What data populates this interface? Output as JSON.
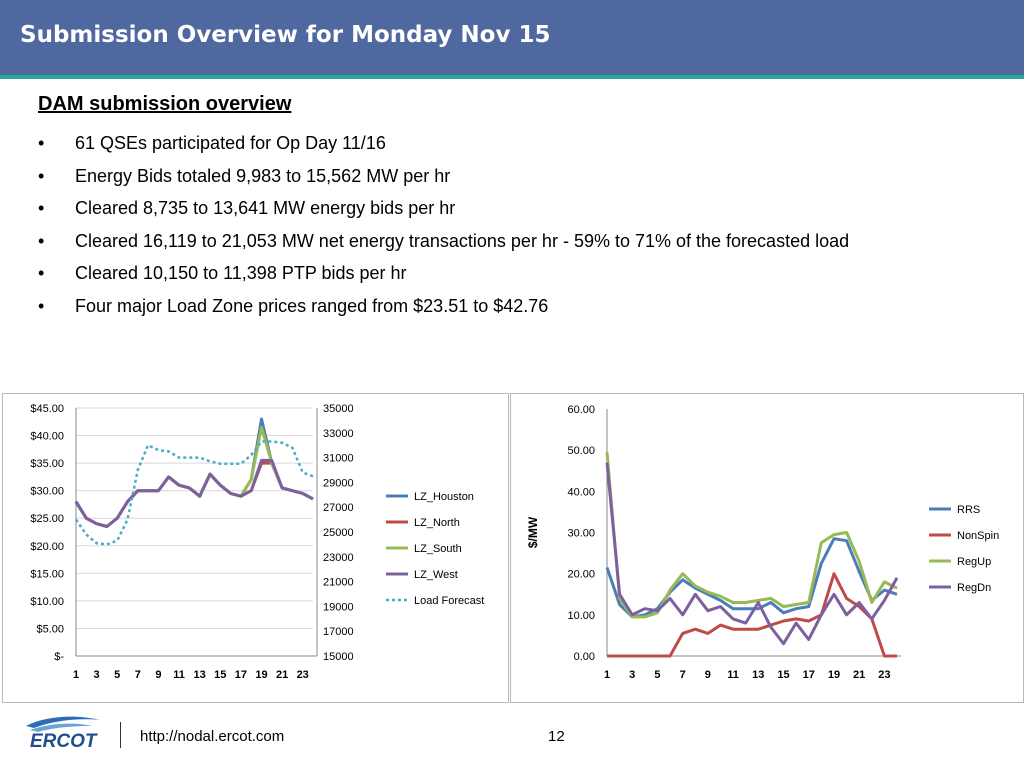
{
  "slide": {
    "title": "Submission Overview for Monday Nov 15",
    "heading": "DAM submission overview",
    "bullets": [
      "61 QSEs participated for Op Day 11/16",
      "Energy Bids totaled 9,983 to 15,562 MW per hr",
      "Cleared 8,735 to 13,641 MW energy bids per hr",
      "Cleared 16,119 to 21,053 MW net energy transactions per hr - 59% to 71% of the forecasted load",
      "Cleared 10,150 to 11,398 PTP bids per hr",
      "Four major Load Zone prices ranged from $23.51 to $42.76"
    ]
  },
  "footer": {
    "logo_text": "ERCOT",
    "url": "http://nodal.ercot.com",
    "page": "12"
  },
  "colors": {
    "header_bg": "#5068a0",
    "accent_line": "#2aa59a",
    "blue": "#4a7ebb",
    "red": "#be4b48",
    "green": "#98b954",
    "purple": "#7d60a0",
    "cyan": "#4bacc6"
  },
  "chart_data": [
    {
      "type": "line",
      "x": [
        1,
        2,
        3,
        4,
        5,
        6,
        7,
        8,
        9,
        10,
        11,
        12,
        13,
        14,
        15,
        16,
        17,
        18,
        19,
        20,
        21,
        22,
        23,
        24
      ],
      "x_tick_labels": [
        "1",
        "3",
        "5",
        "7",
        "9",
        "11",
        "13",
        "15",
        "17",
        "19",
        "21",
        "23"
      ],
      "y_tick_labels": [
        "$45.00",
        "$40.00",
        "$35.00",
        "$30.00",
        "$25.00",
        "$20.00",
        "$15.00",
        "$10.00",
        "$5.00",
        "$-"
      ],
      "y2_tick_labels": [
        "35000",
        "33000",
        "31000",
        "29000",
        "27000",
        "25000",
        "23000",
        "21000",
        "19000",
        "17000",
        "15000"
      ],
      "ylim": [
        0,
        45
      ],
      "y2lim": [
        15000,
        35000
      ],
      "grid": true,
      "legend": "right",
      "series": [
        {
          "name": "LZ_Houston",
          "color": "#4a7ebb",
          "dash": false,
          "axis": "left",
          "values": [
            28,
            25,
            24,
            23.5,
            25,
            28,
            30,
            30,
            30,
            32.5,
            31,
            30.5,
            29,
            33,
            31,
            29.5,
            29,
            32,
            43,
            35,
            30.5,
            30,
            29.5,
            28.5
          ]
        },
        {
          "name": "LZ_North",
          "color": "#be4b48",
          "dash": false,
          "axis": "left",
          "values": [
            28,
            25,
            24,
            23.5,
            25,
            28,
            30,
            30,
            30,
            32.5,
            31,
            30.5,
            29,
            33,
            31,
            29.5,
            29,
            30,
            35,
            35,
            30.5,
            30,
            29.5,
            28.5
          ]
        },
        {
          "name": "LZ_South",
          "color": "#98b954",
          "dash": false,
          "axis": "left",
          "values": [
            28,
            25,
            24,
            23.5,
            25,
            28,
            30,
            30,
            30,
            32.5,
            31,
            30.5,
            29,
            33,
            31,
            29.5,
            29,
            32,
            41.5,
            35,
            30.5,
            30,
            29.5,
            28.5
          ]
        },
        {
          "name": "LZ_West",
          "color": "#7d60a0",
          "dash": false,
          "axis": "left",
          "values": [
            28,
            25,
            24,
            23.5,
            25,
            28,
            30,
            30,
            30,
            32.5,
            31,
            30.5,
            29,
            33,
            31,
            29.5,
            29,
            30,
            35.5,
            35.5,
            30.5,
            30,
            29.5,
            28.5
          ]
        },
        {
          "name": "Load Forecast",
          "color": "#4bacc6",
          "dash": true,
          "axis": "right",
          "values": [
            26000,
            24800,
            24100,
            24000,
            24300,
            26000,
            30000,
            32000,
            31600,
            31500,
            31000,
            31000,
            31000,
            30700,
            30500,
            30500,
            30500,
            31200,
            32300,
            32300,
            32200,
            31800,
            29800,
            29500
          ]
        }
      ]
    },
    {
      "type": "line",
      "x": [
        1,
        2,
        3,
        4,
        5,
        6,
        7,
        8,
        9,
        10,
        11,
        12,
        13,
        14,
        15,
        16,
        17,
        18,
        19,
        20,
        21,
        22,
        23,
        24
      ],
      "x_tick_labels": [
        "1",
        "3",
        "5",
        "7",
        "9",
        "11",
        "13",
        "15",
        "17",
        "19",
        "21",
        "23"
      ],
      "y_tick_labels": [
        "60.00",
        "50.00",
        "40.00",
        "30.00",
        "20.00",
        "10.00",
        "0.00"
      ],
      "ylabel": "$/MW",
      "ylim": [
        0,
        60
      ],
      "grid": false,
      "legend": "right",
      "series": [
        {
          "name": "RRS",
          "color": "#4a7ebb",
          "dash": false,
          "values": [
            21.5,
            12.5,
            9.5,
            10,
            11.5,
            15.5,
            18.5,
            16.5,
            15,
            13.5,
            11.5,
            11.5,
            11.5,
            13,
            10.5,
            11.5,
            12,
            22.5,
            28.5,
            28,
            20.5,
            13.5,
            16,
            15
          ]
        },
        {
          "name": "NonSpin",
          "color": "#be4b48",
          "dash": false,
          "values": [
            0,
            0,
            0,
            0,
            0,
            0,
            5.5,
            6.5,
            5.5,
            7.5,
            6.5,
            6.5,
            6.5,
            7.5,
            8.5,
            9,
            8.5,
            10,
            20,
            14,
            12,
            9,
            0,
            0
          ]
        },
        {
          "name": "RegUp",
          "color": "#98b954",
          "dash": false,
          "values": [
            49.5,
            14,
            9.5,
            9.5,
            10.5,
            16,
            20,
            17,
            15.5,
            14.5,
            13,
            13,
            13.5,
            14,
            12,
            12.5,
            13,
            27.5,
            29.5,
            30,
            23,
            13,
            18,
            16.5
          ]
        },
        {
          "name": "RegDn",
          "color": "#7d60a0",
          "dash": false,
          "values": [
            47,
            15,
            10,
            11.5,
            11,
            14,
            10,
            15,
            11,
            12,
            9,
            8,
            13,
            7,
            3,
            8,
            4,
            10,
            15,
            10,
            13,
            9,
            13.5,
            19
          ]
        }
      ]
    }
  ]
}
